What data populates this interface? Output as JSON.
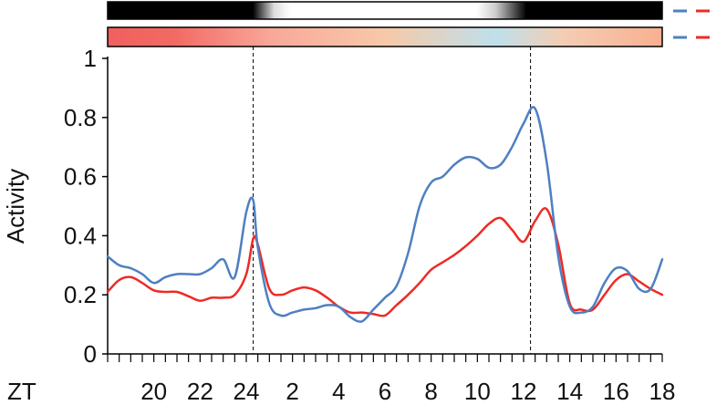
{
  "chart_data": {
    "type": "line",
    "ylabel": "Activity",
    "xlabel": "ZT",
    "ylim": [
      0,
      1
    ],
    "yticks": [
      "0",
      "0.2",
      "0.4",
      "0.6",
      "0.8",
      "1"
    ],
    "x_tick_labels": [
      "20",
      "22",
      "24",
      "2",
      "4",
      "6",
      "8",
      "10",
      "12",
      "14",
      "16",
      "18"
    ],
    "xlim_hours": [
      18,
      42
    ],
    "minor_tick_step_hours": 0.5,
    "dashed_vlines_zt": [
      "24",
      "12"
    ],
    "grid": false,
    "legend": "none",
    "colors": {
      "series_blue": "#4f7fc1",
      "series_red": "#ee2a24",
      "dashed": "#000000"
    },
    "light_bar": {
      "description": "light/dark bar: dark then grey-white gradient (light phase) then dark",
      "stops": [
        {
          "pos": 0.0,
          "color": "#000000"
        },
        {
          "pos": 0.262,
          "color": "#000000"
        },
        {
          "pos": 0.3,
          "color": "#dddddd"
        },
        {
          "pos": 0.33,
          "color": "#ffffff"
        },
        {
          "pos": 0.665,
          "color": "#ffffff"
        },
        {
          "pos": 0.7,
          "color": "#cccccc"
        },
        {
          "pos": 0.755,
          "color": "#000000"
        },
        {
          "pos": 1.0,
          "color": "#000000"
        }
      ]
    },
    "temperature_bar": {
      "stops": [
        {
          "pos": 0.0,
          "color": "#f0605e"
        },
        {
          "pos": 0.12,
          "color": "#f26a64"
        },
        {
          "pos": 0.3,
          "color": "#f8a99a"
        },
        {
          "pos": 0.5,
          "color": "#f7c9a8"
        },
        {
          "pos": 0.7,
          "color": "#bfe0ec"
        },
        {
          "pos": 0.82,
          "color": "#f4cdb4"
        },
        {
          "pos": 1.0,
          "color": "#f8b090"
        }
      ]
    },
    "bar_legend": [
      {
        "row": "light",
        "colors": [
          "#4f7fc1",
          "#ee2a24"
        ]
      },
      {
        "row": "temperature",
        "colors": [
          "#4f7fc1",
          "#ee2a24"
        ]
      }
    ],
    "x_hours": [
      18,
      18.5,
      19,
      19.5,
      20,
      20.5,
      21,
      21.5,
      22,
      22.5,
      23,
      23.5,
      24,
      24.3,
      24.5,
      25,
      25.5,
      26,
      26.5,
      27,
      27.5,
      28,
      28.5,
      29,
      29.5,
      30,
      30.5,
      31,
      31.5,
      32,
      32.5,
      33,
      33.5,
      34,
      34.5,
      35,
      35.5,
      36,
      36.5,
      37,
      37.5,
      38,
      38.5,
      39,
      39.5,
      40,
      40.5,
      41,
      41.5,
      42
    ],
    "series": [
      {
        "color": "#4f7fc1",
        "values": [
          0.33,
          0.3,
          0.29,
          0.27,
          0.24,
          0.26,
          0.27,
          0.27,
          0.27,
          0.29,
          0.32,
          0.26,
          0.48,
          0.52,
          0.36,
          0.17,
          0.13,
          0.14,
          0.15,
          0.155,
          0.165,
          0.16,
          0.125,
          0.11,
          0.15,
          0.19,
          0.23,
          0.34,
          0.5,
          0.58,
          0.6,
          0.64,
          0.665,
          0.66,
          0.63,
          0.64,
          0.7,
          0.78,
          0.83,
          0.65,
          0.33,
          0.16,
          0.14,
          0.16,
          0.24,
          0.29,
          0.28,
          0.22,
          0.22,
          0.32
        ]
      },
      {
        "color": "#ee2a24",
        "values": [
          0.21,
          0.25,
          0.26,
          0.24,
          0.215,
          0.21,
          0.21,
          0.195,
          0.18,
          0.19,
          0.19,
          0.2,
          0.27,
          0.39,
          0.37,
          0.22,
          0.2,
          0.215,
          0.225,
          0.215,
          0.19,
          0.16,
          0.14,
          0.14,
          0.135,
          0.13,
          0.165,
          0.2,
          0.24,
          0.285,
          0.31,
          0.335,
          0.365,
          0.4,
          0.44,
          0.46,
          0.42,
          0.38,
          0.45,
          0.49,
          0.37,
          0.17,
          0.15,
          0.15,
          0.2,
          0.25,
          0.27,
          0.245,
          0.22,
          0.2
        ]
      }
    ]
  }
}
